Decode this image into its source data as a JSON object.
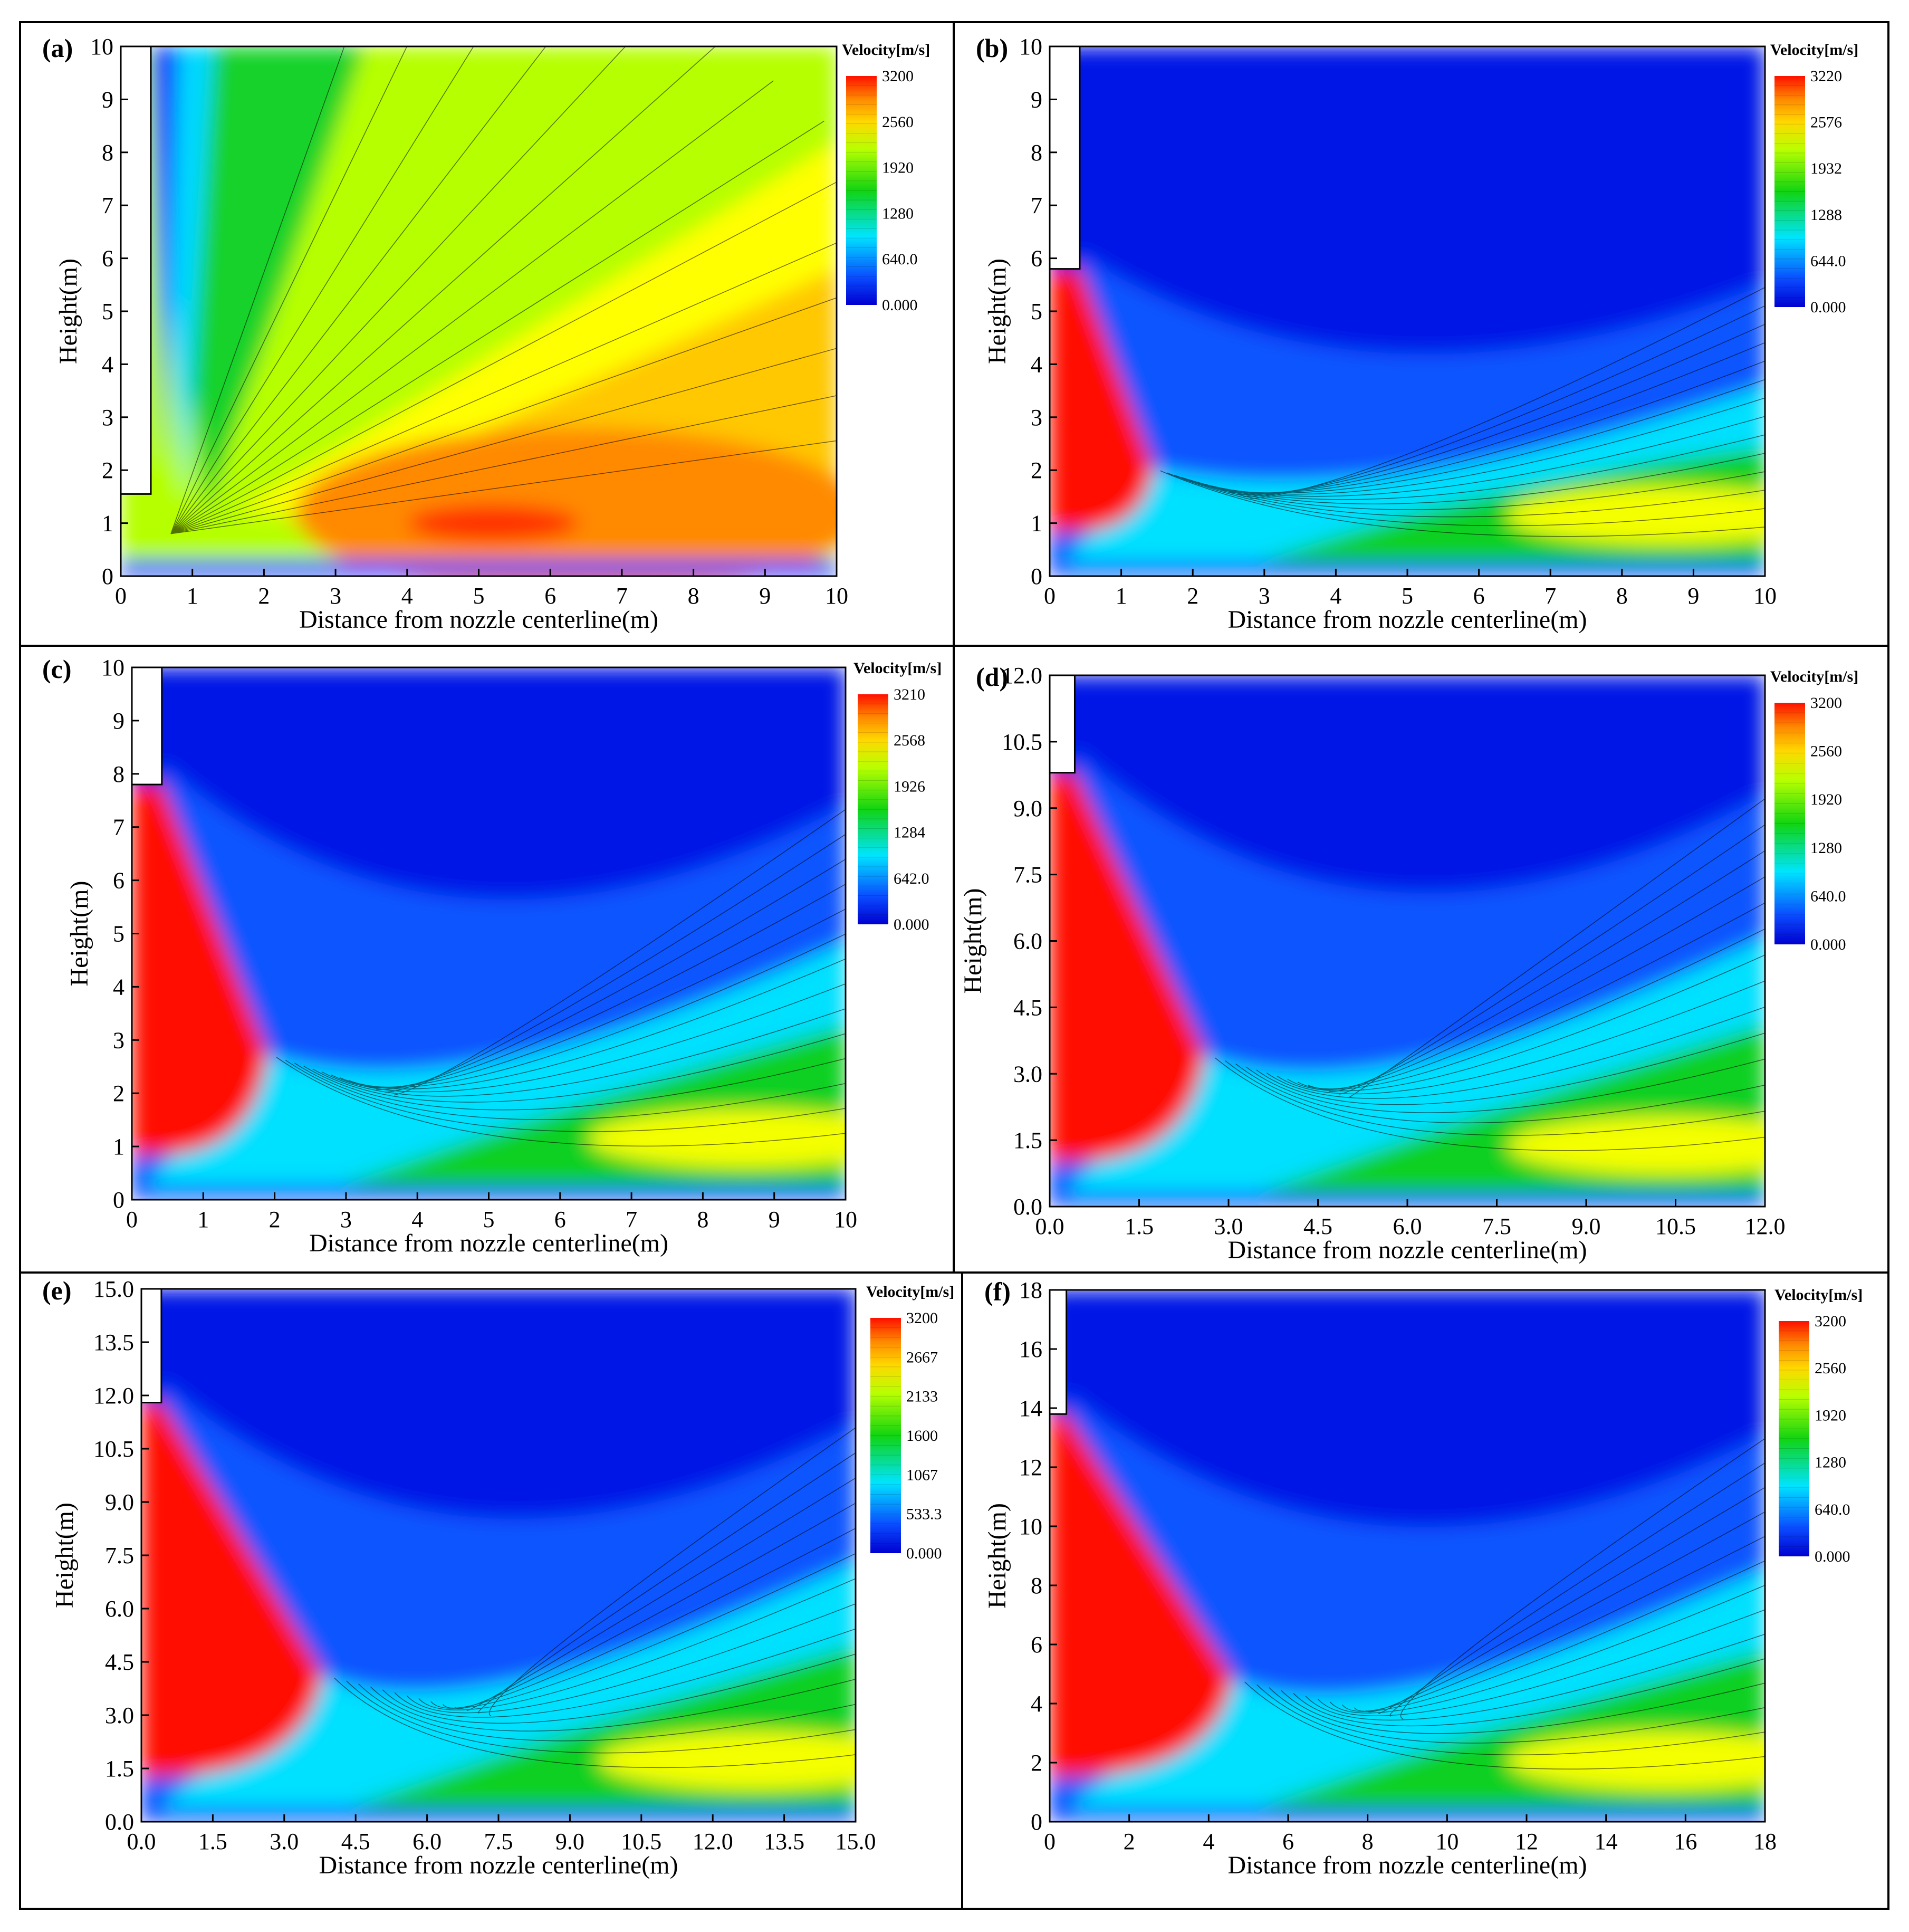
{
  "chart_data": [
    {
      "type": "heatmap",
      "label": "(a)",
      "xlabel": "Distance from nozzle centerline(m)",
      "ylabel": "Height(m)",
      "xlim": [
        0,
        10
      ],
      "ylim": [
        0,
        10
      ],
      "x_ticks": [
        "0",
        "1",
        "2",
        "3",
        "4",
        "5",
        "6",
        "7",
        "8",
        "9",
        "10"
      ],
      "y_ticks": [
        "0",
        "1",
        "2",
        "3",
        "4",
        "5",
        "6",
        "7",
        "8",
        "9",
        "10"
      ],
      "colorbar": {
        "title": "Velocity[m/s]",
        "labels": [
          "3200",
          "2560",
          "1920",
          "1280",
          "640.0",
          "0.000"
        ],
        "max": 3200
      },
      "nozzle": {
        "radius": 0.42,
        "exit_height": 1.55,
        "plug_radius": 0.42
      }
    },
    {
      "type": "heatmap",
      "label": "(b)",
      "xlabel": "Distance from nozzle centerline(m)",
      "ylabel": "Height(m)",
      "xlim": [
        0,
        10
      ],
      "ylim": [
        0,
        10
      ],
      "x_ticks": [
        "0",
        "1",
        "2",
        "3",
        "4",
        "5",
        "6",
        "7",
        "8",
        "9",
        "10"
      ],
      "y_ticks": [
        "0",
        "1",
        "2",
        "3",
        "4",
        "5",
        "6",
        "7",
        "8",
        "9",
        "10"
      ],
      "colorbar": {
        "title": "Velocity[m/s]",
        "labels": [
          "3220",
          "2576",
          "1932",
          "1288",
          "644.0",
          "0.000"
        ],
        "max": 3220
      },
      "nozzle": {
        "radius": 0.42,
        "exit_height": 5.8,
        "plug_radius": 1.45
      }
    },
    {
      "type": "heatmap",
      "label": "(c)",
      "xlabel": "Distance from nozzle centerline(m)",
      "ylabel": "Height(m)",
      "xlim": [
        0,
        10
      ],
      "ylim": [
        0,
        10
      ],
      "x_ticks": [
        "0",
        "1",
        "2",
        "3",
        "4",
        "5",
        "6",
        "7",
        "8",
        "9",
        "10"
      ],
      "y_ticks": [
        "0",
        "1",
        "2",
        "3",
        "4",
        "5",
        "6",
        "7",
        "8",
        "9",
        "10"
      ],
      "colorbar": {
        "title": "Velocity[m/s]",
        "labels": [
          "3210",
          "2568",
          "1926",
          "1284",
          "642.0",
          "0.000"
        ],
        "max": 3210
      },
      "nozzle": {
        "radius": 0.42,
        "exit_height": 7.8,
        "plug_radius": 1.9
      }
    },
    {
      "type": "heatmap",
      "label": "(d)",
      "xlabel": "Distance from nozzle centerline(m)",
      "ylabel": "Height(m)",
      "xlim": [
        0,
        12
      ],
      "ylim": [
        0,
        12
      ],
      "x_ticks": [
        "0.0",
        "1.5",
        "3.0",
        "4.5",
        "6.0",
        "7.5",
        "9.0",
        "10.5",
        "12.0"
      ],
      "y_ticks": [
        "0.0",
        "1.5",
        "3.0",
        "4.5",
        "6.0",
        "7.5",
        "9.0",
        "10.5",
        "12.0"
      ],
      "colorbar": {
        "title": "Velocity[m/s]",
        "labels": [
          "3200",
          "2560",
          "1920",
          "1280",
          "640.0",
          "0.000"
        ],
        "max": 3200
      },
      "nozzle": {
        "radius": 0.42,
        "exit_height": 9.8,
        "plug_radius": 2.6
      }
    },
    {
      "type": "heatmap",
      "label": "(e)",
      "xlabel": "Distance from nozzle centerline(m)",
      "ylabel": "Height(m)",
      "xlim": [
        0,
        15
      ],
      "ylim": [
        0,
        15
      ],
      "x_ticks": [
        "0.0",
        "1.5",
        "3.0",
        "4.5",
        "6.0",
        "7.5",
        "9.0",
        "10.5",
        "12.0",
        "13.5",
        "15.0"
      ],
      "y_ticks": [
        "0.0",
        "1.5",
        "3.0",
        "4.5",
        "6.0",
        "7.5",
        "9.0",
        "10.5",
        "12.0",
        "13.5",
        "15.0"
      ],
      "colorbar": {
        "title": "Velocity[m/s]",
        "labels": [
          "3200",
          "2667",
          "2133",
          "1600",
          "1067",
          "533.3",
          "0.000"
        ],
        "max": 3200
      },
      "nozzle": {
        "radius": 0.42,
        "exit_height": 11.8,
        "plug_radius": 3.8
      }
    },
    {
      "type": "heatmap",
      "label": "(f)",
      "xlabel": "Distance from nozzle centerline(m)",
      "ylabel": "Height(m)",
      "xlim": [
        0,
        18
      ],
      "ylim": [
        0,
        18
      ],
      "x_ticks": [
        "0",
        "2",
        "4",
        "6",
        "8",
        "10",
        "12",
        "14",
        "16",
        "18"
      ],
      "y_ticks": [
        "0",
        "2",
        "4",
        "6",
        "8",
        "10",
        "12",
        "14",
        "16",
        "18"
      ],
      "colorbar": {
        "title": "Velocity[m/s]",
        "labels": [
          "3200",
          "2560",
          "1920",
          "1280",
          "640.0",
          "0.000"
        ],
        "max": 3200
      },
      "nozzle": {
        "radius": 0.42,
        "exit_height": 13.8,
        "plug_radius": 4.6
      }
    }
  ]
}
